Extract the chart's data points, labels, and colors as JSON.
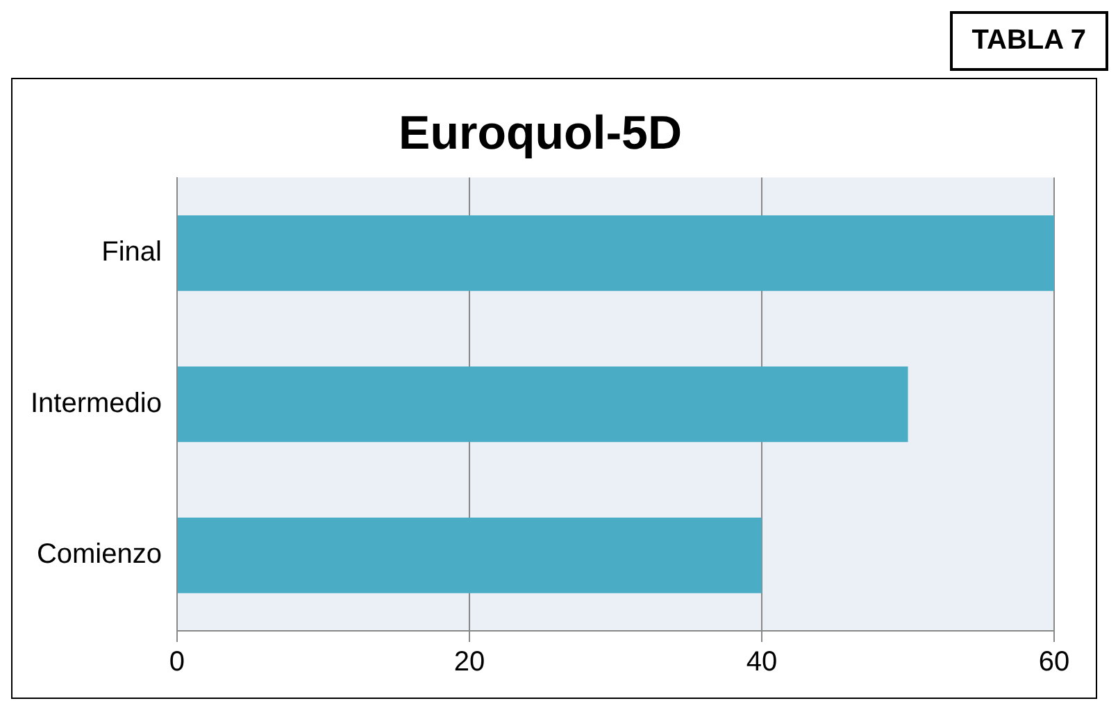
{
  "chart_data": {
    "type": "bar",
    "orientation": "horizontal",
    "title": "Euroquol-5D",
    "annotations": [
      "TABLA 7"
    ],
    "categories": [
      "Final",
      "Intermedio",
      "Comienzo"
    ],
    "series": [
      {
        "color": "#4bacc6",
        "values": [
          60,
          50,
          40
        ]
      }
    ],
    "xlim": [
      0,
      60
    ],
    "xticks": [
      0,
      20,
      40,
      60
    ],
    "grid": "x",
    "legend": false
  }
}
